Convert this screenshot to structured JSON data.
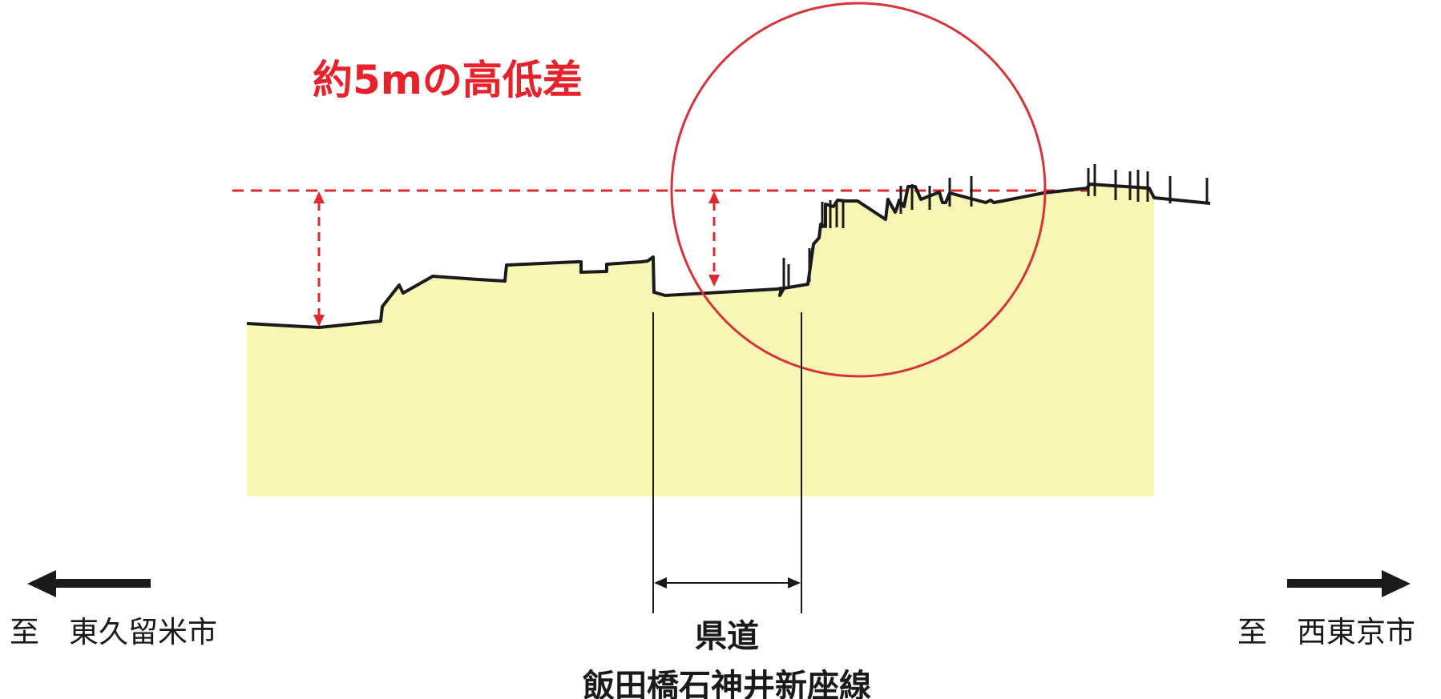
{
  "headline": {
    "text": "約5mの高低差",
    "color": "#e8222a"
  },
  "left_direction": {
    "label": "至　東久留米市",
    "icon": "arrow-left-icon"
  },
  "right_direction": {
    "label": "至　西東京市",
    "icon": "arrow-right-icon"
  },
  "road": {
    "line1": "県道",
    "line2": "飯田橋石神井新座線"
  },
  "colors": {
    "ground_fill": "#f7f6b4",
    "profile_line": "#1a1a1a",
    "marker_red": "#e0282f",
    "highlight_circle": "#d9333a",
    "text": "#1a1a1a"
  }
}
